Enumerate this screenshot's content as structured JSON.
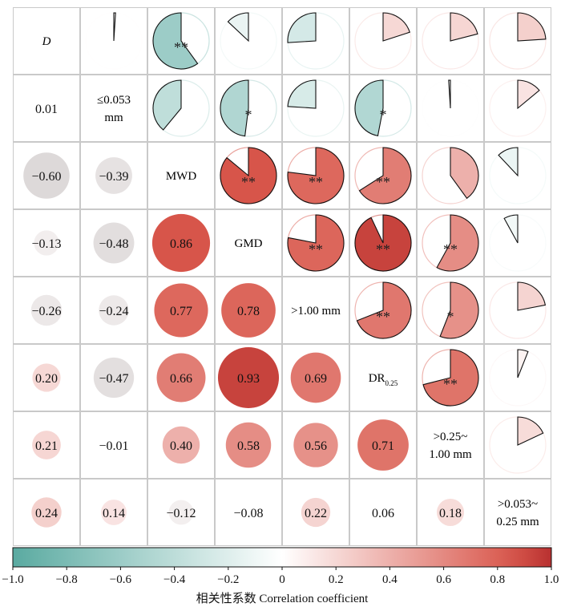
{
  "chart_data": {
    "type": "correlation_matrix",
    "title": "",
    "variables": [
      "D",
      "≤0.053 mm",
      "MWD",
      "GMD",
      ">1.00 mm",
      "DR0.25",
      ">0.25~1.00 mm",
      ">0.053~0.25 mm"
    ],
    "lower_triangle": [
      {
        "row": "≤0.053 mm",
        "values": [
          {
            "label": "0.01",
            "r": 0.01
          }
        ]
      },
      {
        "row": "MWD",
        "values": [
          {
            "label": "−0.60",
            "r": -0.6
          },
          {
            "label": "−0.39",
            "r": -0.39
          }
        ]
      },
      {
        "row": "GMD",
        "values": [
          {
            "label": "−0.13",
            "r": -0.13
          },
          {
            "label": "−0.48",
            "r": -0.48
          },
          {
            "label": "0.86",
            "r": 0.86
          }
        ]
      },
      {
        "row": ">1.00 mm",
        "values": [
          {
            "label": "−0.26",
            "r": -0.26
          },
          {
            "label": "−0.24",
            "r": -0.24
          },
          {
            "label": "0.77",
            "r": 0.77
          },
          {
            "label": "0.78",
            "r": 0.78
          }
        ]
      },
      {
        "row": "DR0.25",
        "values": [
          {
            "label": "0.20",
            "r": 0.2
          },
          {
            "label": "−0.47",
            "r": -0.47
          },
          {
            "label": "0.66",
            "r": 0.66
          },
          {
            "label": "0.93",
            "r": 0.93
          },
          {
            "label": "0.69",
            "r": 0.69
          }
        ]
      },
      {
        "row": ">0.25~1.00 mm",
        "values": [
          {
            "label": "0.21",
            "r": 0.21
          },
          {
            "label": "−0.01",
            "r": -0.01
          },
          {
            "label": "0.40",
            "r": 0.4
          },
          {
            "label": "0.58",
            "r": 0.58
          },
          {
            "label": "0.56",
            "r": 0.56
          },
          {
            "label": "0.71",
            "r": 0.71
          }
        ]
      },
      {
        "row": ">0.053~0.25 mm",
        "values": [
          {
            "label": "0.24",
            "r": 0.24
          },
          {
            "label": "0.14",
            "r": 0.14
          },
          {
            "label": "−0.12",
            "r": -0.12
          },
          {
            "label": "−0.08",
            "r": -0.08
          },
          {
            "label": "0.22",
            "r": 0.22
          },
          {
            "label": "0.06",
            "r": 0.06
          },
          {
            "label": "0.18",
            "r": 0.18
          }
        ]
      }
    ],
    "upper_triangle_significance": [
      [
        "",
        "",
        "**",
        "",
        "",
        "",
        "",
        ""
      ],
      [
        "",
        "",
        "",
        "*",
        "",
        "*",
        "",
        ""
      ],
      [
        "",
        "",
        "",
        "**",
        "**",
        "**",
        "",
        ""
      ],
      [
        "",
        "",
        "",
        "",
        "**",
        "**",
        "**",
        ""
      ],
      [
        "",
        "",
        "",
        "",
        "",
        "**",
        "*",
        ""
      ],
      [
        "",
        "",
        "",
        "",
        "",
        "",
        "**",
        ""
      ],
      [
        "",
        "",
        "",
        "",
        "",
        "",
        "",
        ""
      ],
      [
        "",
        "",
        "",
        "",
        "",
        "",
        "",
        ""
      ]
    ],
    "colorbar": {
      "min": -1.0,
      "max": 1.0,
      "ticks": [
        "−1.0",
        "−0.8",
        "−0.6",
        "−0.4",
        "−0.2",
        "0",
        "0.2",
        "0.4",
        "0.6",
        "0.8",
        "1.0"
      ],
      "label": "相关性系数 Correlation coefficient",
      "negative_color": "#5aaaa1",
      "neutral_color": "#ffffff",
      "positive_color": "#d9584c"
    }
  }
}
